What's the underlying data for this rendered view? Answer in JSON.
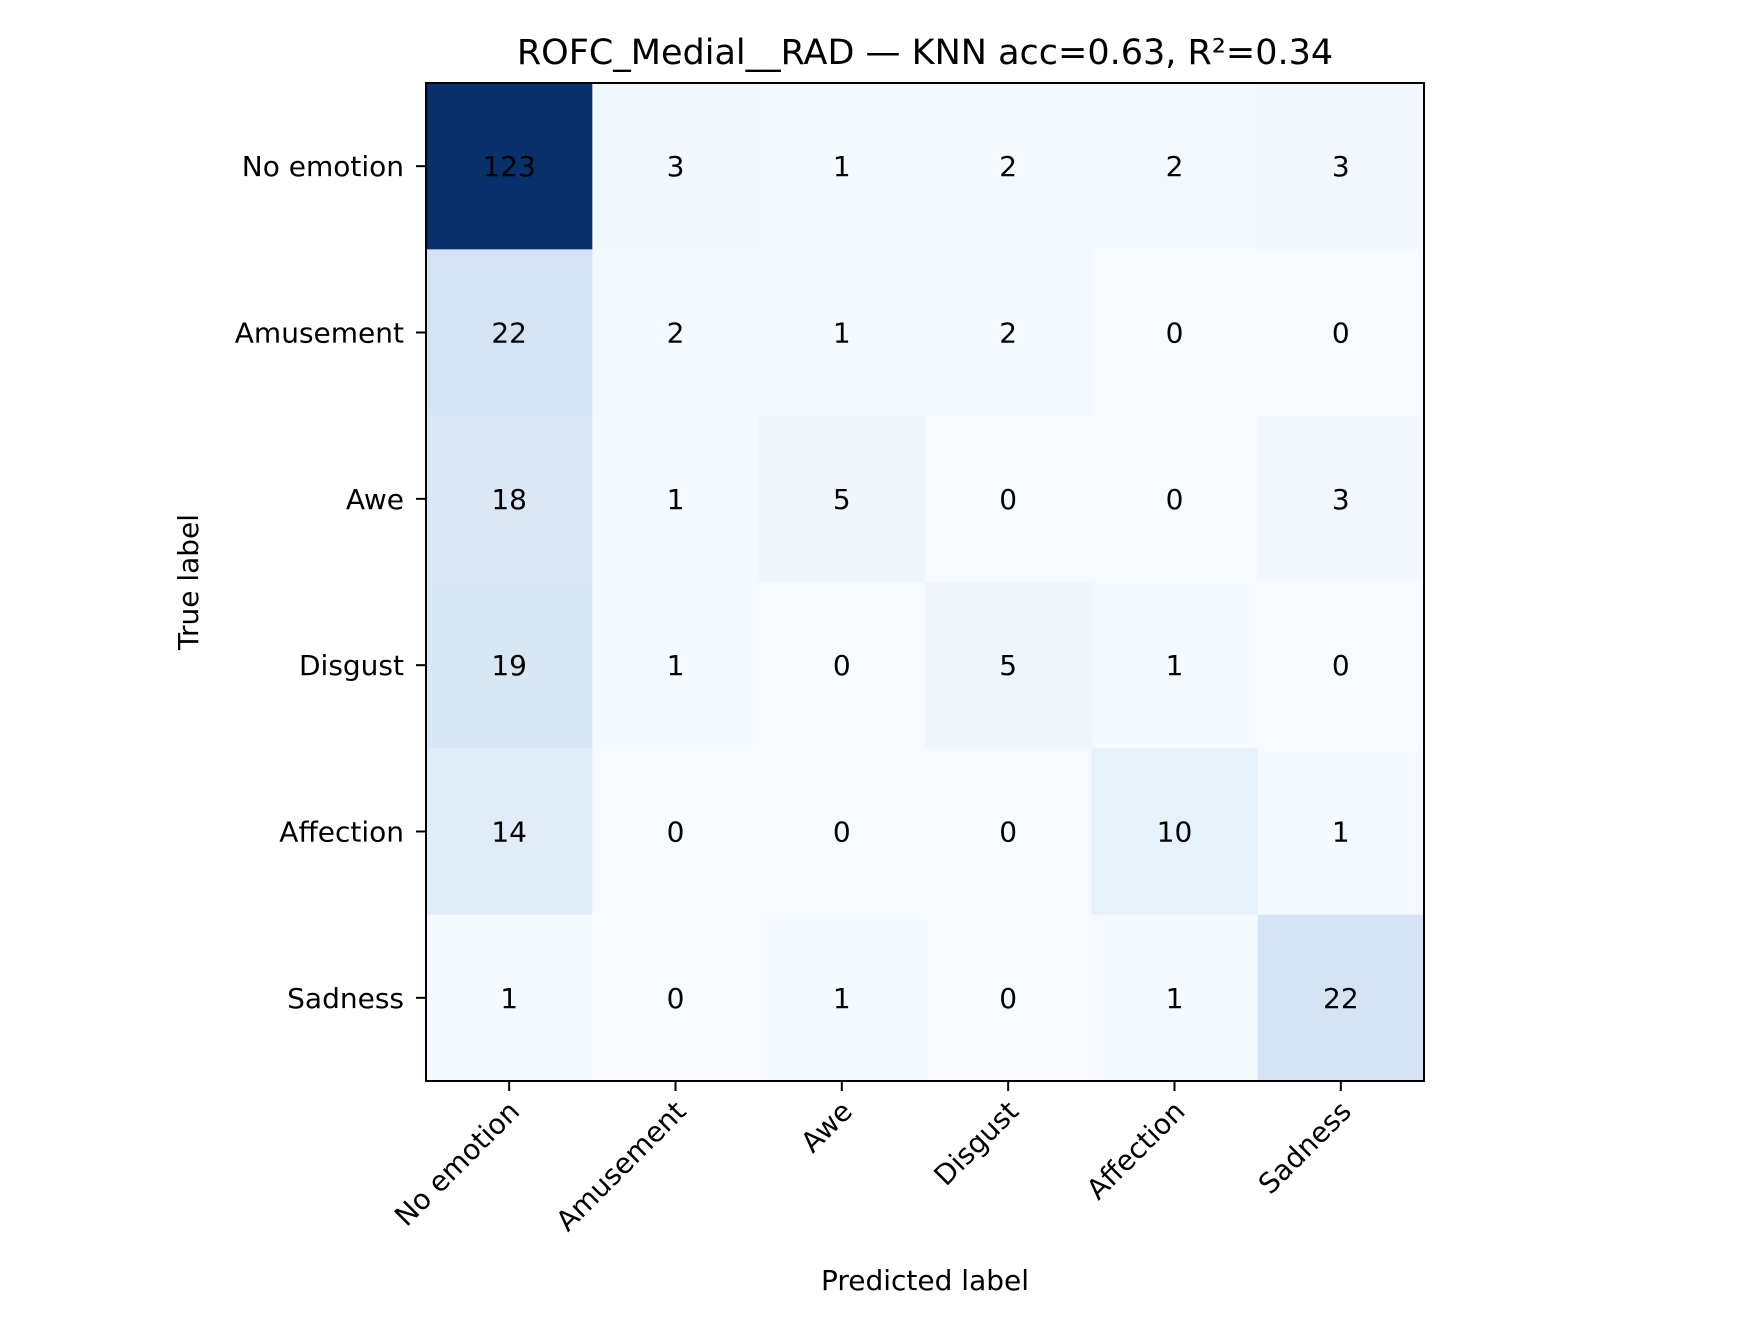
{
  "chart_data": {
    "type": "heatmap",
    "title": "ROFC_Medial__RAD — KNN acc=0.63, R²=0.34",
    "xlabel": "Predicted label",
    "ylabel": "True label",
    "x_categories": [
      "No emotion",
      "Amusement",
      "Awe",
      "Disgust",
      "Affection",
      "Sadness"
    ],
    "y_categories": [
      "No emotion",
      "Amusement",
      "Awe",
      "Disgust",
      "Affection",
      "Sadness"
    ],
    "values": [
      [
        123,
        3,
        1,
        2,
        2,
        3
      ],
      [
        22,
        2,
        1,
        2,
        0,
        0
      ],
      [
        18,
        1,
        5,
        0,
        0,
        3
      ],
      [
        19,
        1,
        0,
        5,
        1,
        0
      ],
      [
        14,
        0,
        0,
        0,
        10,
        1
      ],
      [
        1,
        0,
        1,
        0,
        1,
        22
      ]
    ],
    "colormap": "Blues",
    "color_low": "#f7fbff",
    "color_high": "#08306b",
    "text_dark": "#08306b",
    "text_light": "#ffffff",
    "grid": false
  }
}
